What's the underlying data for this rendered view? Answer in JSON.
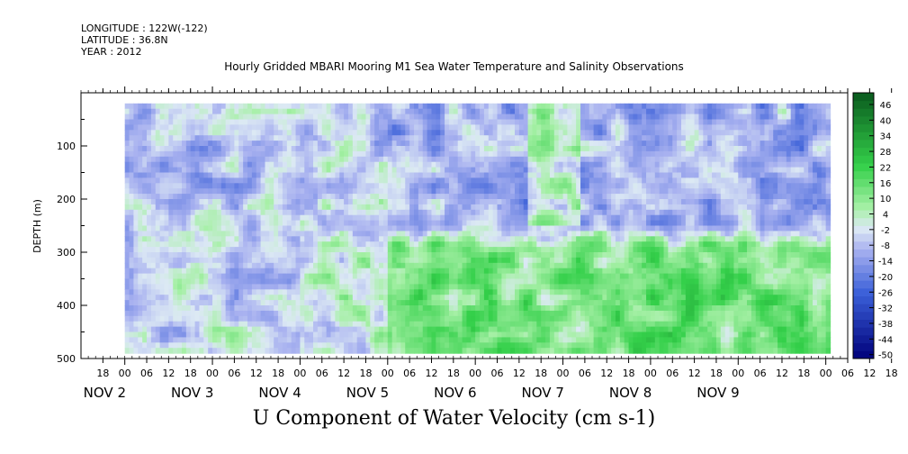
{
  "header": {
    "longitude": "LONGITUDE : 122W(-122)",
    "latitude": "LATITUDE : 36.8N",
    "year": "YEAR : 2012"
  },
  "chart_data": {
    "type": "heatmap",
    "title": "Hourly Gridded MBARI Mooring M1 Sea Water Temperature and Salinity Observations",
    "xlabel": "U Component of Water Velocity (cm s-1)",
    "ylabel": "DEPTH (m)",
    "ylim": [
      500,
      0
    ],
    "y_ticks": [
      100,
      200,
      300,
      400,
      500
    ],
    "y_data_range": [
      20,
      485
    ],
    "x_range_hours": [
      -12,
      198
    ],
    "x_data_range_hours": [
      0,
      192
    ],
    "hour_ticks": [
      "18",
      "00",
      "06",
      "12",
      "18",
      "00",
      "06",
      "12",
      "18",
      "00",
      "06",
      "12",
      "18",
      "00",
      "06",
      "12",
      "18",
      "00",
      "06",
      "12",
      "18",
      "00",
      "06",
      "12",
      "18",
      "00",
      "06",
      "12",
      "18",
      "00",
      "06",
      "12",
      "18",
      "00",
      "06",
      "12",
      "18"
    ],
    "day_labels": [
      "NOV 2",
      "NOV 3",
      "NOV 4",
      "NOV 5",
      "NOV 6",
      "NOV 7",
      "NOV 8",
      "NOV 9"
    ],
    "colorbar_labels": [
      "46",
      "40",
      "34",
      "28",
      "22",
      "16",
      "10",
      "4",
      "-2",
      "-8",
      "-14",
      "-20",
      "-26",
      "-32",
      "-38",
      "-44",
      "-50"
    ],
    "colorbar_range": [
      -50,
      52
    ],
    "colors": {
      "strong_negative": "#00007a",
      "negative": "#3a5fd8",
      "weak_negative": "#a9b2f0",
      "neutral": "#dce9f4",
      "weak_positive": "#a6f0a6",
      "positive": "#34d04a",
      "strong_positive": "#0a5a1e"
    },
    "field_pattern": "mostly negative (blue) above 250 m, positive (green) below 250 m from Nov 5 onward"
  }
}
